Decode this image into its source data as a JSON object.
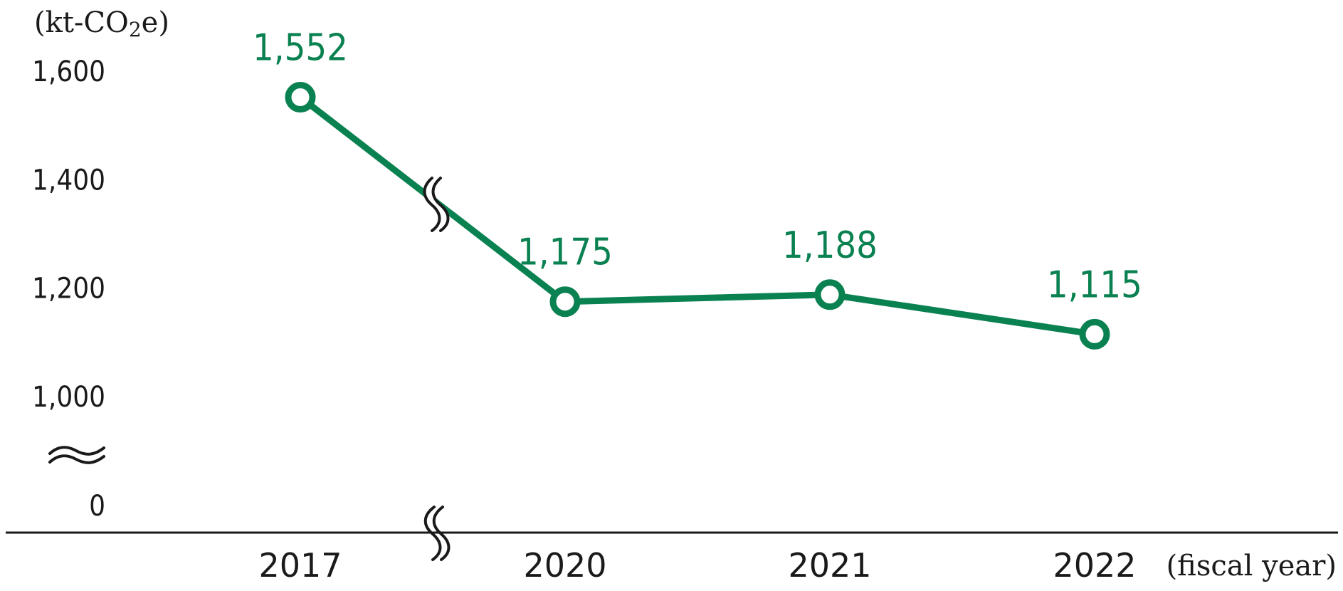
{
  "chart_data": {
    "type": "line",
    "categories": [
      "2017",
      "2020",
      "2021",
      "2022"
    ],
    "values": [
      1552,
      1175,
      1188,
      1115
    ],
    "data_labels": [
      "1,552",
      "1,175",
      "1,188",
      "1,115"
    ],
    "y_unit_label": "(kt-CO",
    "y_unit_sub": "2",
    "y_unit_tail": "e)",
    "x_unit_label": "(fiscal year)",
    "y_ticks": [
      {
        "label": "0",
        "value": 0
      },
      {
        "label": "1,000",
        "value": 1000
      },
      {
        "label": "1,200",
        "value": 1200
      },
      {
        "label": "1,400",
        "value": 1400
      },
      {
        "label": "1,600",
        "value": 1600
      }
    ],
    "ylim": [
      1000,
      1600
    ],
    "y_axis_break": true,
    "x_axis_break": true,
    "line_color": "#0a8150",
    "label_color": "#0a8150",
    "grid": false,
    "legend": "none"
  }
}
